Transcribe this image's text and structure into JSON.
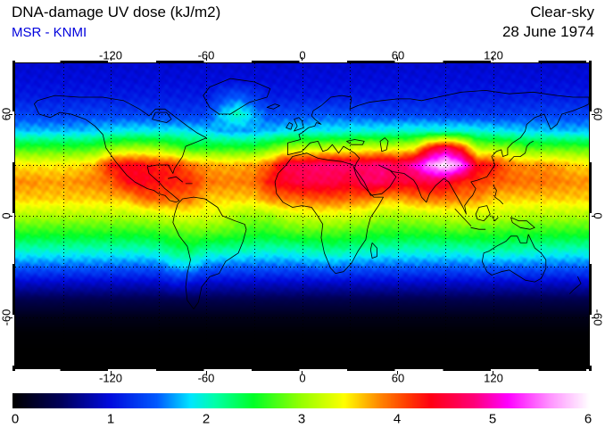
{
  "header": {
    "title": "DNA-damage UV dose (kJ/m2)",
    "source": "MSR - KNMI",
    "source_color": "#0000dd",
    "condition": "Clear-sky",
    "date": "28 June 1974"
  },
  "chart_data": {
    "type": "heatmap",
    "projection": "equirectangular",
    "unit": "kJ/m2",
    "lon_range": [
      -180,
      180
    ],
    "lat_range": [
      -90,
      90
    ],
    "grid_step_deg": 30,
    "lon_ticks": [
      -120,
      -60,
      0,
      60,
      120
    ],
    "lat_ticks": [
      60,
      0,
      -60
    ],
    "lon_tick_labels": [
      "-120",
      "-60",
      "0",
      "60",
      "120"
    ],
    "lat_tick_labels": [
      "60",
      "0",
      "-60"
    ],
    "colorbar": {
      "min": 0,
      "max": 6,
      "ticks": [
        0,
        1,
        2,
        3,
        4,
        5,
        6
      ],
      "tick_labels": [
        "0",
        "1",
        "2",
        "3",
        "4",
        "5",
        "6"
      ],
      "stops": [
        {
          "v": 0.0,
          "c": "#000000"
        },
        {
          "v": 0.5,
          "c": "#00005a"
        },
        {
          "v": 1.0,
          "c": "#000adc"
        },
        {
          "v": 1.5,
          "c": "#005aff"
        },
        {
          "v": 1.85,
          "c": "#00e6ff"
        },
        {
          "v": 2.1,
          "c": "#00ffaa"
        },
        {
          "v": 2.5,
          "c": "#00ff28"
        },
        {
          "v": 3.0,
          "c": "#96ff00"
        },
        {
          "v": 3.45,
          "c": "#ffff00"
        },
        {
          "v": 3.8,
          "c": "#ff8c00"
        },
        {
          "v": 4.1,
          "c": "#ff3c00"
        },
        {
          "v": 4.35,
          "c": "#ff0014"
        },
        {
          "v": 4.8,
          "c": "#ff0078"
        },
        {
          "v": 5.15,
          "c": "#ff00ff"
        },
        {
          "v": 5.6,
          "c": "#ff96ff"
        },
        {
          "v": 6.0,
          "c": "#ffffff"
        }
      ]
    },
    "grid": {
      "lats": [
        90,
        80,
        70,
        60,
        50,
        40,
        30,
        20,
        10,
        0,
        -10,
        -20,
        -30,
        -40,
        -50,
        -60,
        -70,
        -80,
        -90
      ],
      "lons": [
        -180,
        -170,
        -160,
        -150,
        -140,
        -130,
        -120,
        -110,
        -100,
        -90,
        -80,
        -70,
        -60,
        -50,
        -40,
        -30,
        -20,
        -10,
        0,
        10,
        20,
        30,
        40,
        50,
        60,
        70,
        80,
        90,
        100,
        110,
        120,
        130,
        140,
        150,
        160,
        170,
        180
      ],
      "values": [
        [
          0.95,
          0.95,
          0.95,
          0.95,
          0.95,
          0.95,
          0.95,
          0.95,
          0.95,
          0.95,
          0.95,
          0.95,
          0.95,
          0.95,
          0.95,
          0.95,
          0.95,
          0.95,
          0.95,
          0.95,
          0.95,
          0.95,
          0.95,
          0.95,
          0.95,
          0.95,
          0.95,
          0.95,
          0.95,
          0.95,
          0.95,
          0.95,
          0.95,
          0.95,
          0.95,
          0.95,
          0.95
        ],
        [
          1.0,
          1.0,
          1.0,
          1.0,
          1.0,
          1.0,
          1.0,
          1.0,
          1.0,
          1.0,
          1.0,
          1.0,
          1.0,
          1.0,
          1.0,
          1.0,
          1.0,
          1.0,
          1.0,
          1.0,
          1.0,
          1.0,
          1.0,
          1.0,
          1.0,
          1.0,
          1.0,
          1.0,
          1.0,
          1.0,
          1.0,
          1.0,
          1.0,
          1.0,
          1.0,
          1.0,
          1.0
        ],
        [
          1.1,
          1.1,
          1.1,
          1.1,
          1.1,
          1.1,
          1.1,
          1.1,
          1.1,
          1.1,
          1.1,
          1.1,
          1.1,
          1.35,
          1.5,
          1.3,
          1.1,
          1.1,
          1.1,
          1.1,
          1.1,
          1.1,
          1.1,
          1.1,
          1.1,
          1.1,
          1.1,
          1.1,
          1.1,
          1.1,
          1.1,
          1.1,
          1.1,
          1.1,
          1.1,
          1.1,
          1.1
        ],
        [
          1.35,
          1.35,
          1.3,
          1.3,
          1.35,
          1.35,
          1.35,
          1.35,
          1.35,
          1.3,
          1.3,
          1.3,
          1.35,
          1.8,
          2.1,
          1.7,
          1.4,
          1.4,
          1.4,
          1.45,
          1.45,
          1.4,
          1.4,
          1.35,
          1.35,
          1.35,
          1.35,
          1.3,
          1.3,
          1.3,
          1.3,
          1.3,
          1.35,
          1.35,
          1.35,
          1.35,
          1.35
        ],
        [
          1.75,
          1.75,
          1.75,
          1.75,
          1.75,
          1.8,
          1.85,
          1.9,
          1.9,
          1.9,
          1.9,
          1.85,
          1.8,
          1.7,
          1.65,
          1.7,
          1.75,
          1.85,
          1.9,
          1.9,
          1.9,
          1.95,
          1.95,
          1.95,
          2.0,
          2.0,
          2.0,
          2.0,
          2.0,
          1.95,
          1.9,
          1.85,
          1.8,
          1.8,
          1.75,
          1.75,
          1.75
        ],
        [
          2.65,
          2.65,
          2.65,
          2.65,
          2.65,
          2.7,
          2.95,
          3.05,
          3.05,
          3.0,
          2.8,
          2.6,
          2.6,
          2.6,
          2.6,
          2.6,
          2.8,
          3.1,
          3.15,
          3.15,
          3.2,
          3.2,
          3.3,
          3.3,
          3.3,
          3.4,
          4.3,
          4.7,
          4.2,
          3.1,
          3.05,
          3.0,
          2.75,
          2.75,
          2.75,
          2.75,
          2.7
        ],
        [
          3.55,
          3.5,
          3.5,
          3.5,
          3.55,
          3.7,
          4.3,
          4.4,
          4.35,
          4.25,
          4.2,
          3.9,
          3.75,
          3.7,
          3.7,
          3.75,
          4.0,
          4.6,
          4.65,
          4.75,
          4.75,
          4.75,
          4.7,
          4.85,
          4.65,
          5.0,
          5.6,
          6.0,
          5.5,
          4.35,
          4.3,
          3.9,
          3.8,
          3.8,
          3.75,
          3.6,
          3.55
        ],
        [
          3.8,
          3.8,
          3.75,
          3.75,
          3.8,
          3.85,
          3.95,
          4.35,
          4.4,
          4.3,
          4.25,
          4.2,
          3.9,
          3.85,
          3.85,
          3.9,
          4.3,
          4.45,
          4.6,
          4.6,
          4.6,
          4.45,
          4.7,
          4.7,
          4.5,
          4.5,
          4.6,
          4.5,
          4.2,
          4.15,
          4.0,
          3.95,
          3.9,
          3.9,
          3.85,
          3.8,
          3.8
        ],
        [
          3.6,
          3.6,
          3.6,
          3.6,
          3.6,
          3.6,
          3.65,
          3.65,
          3.95,
          4.0,
          3.95,
          3.9,
          3.6,
          3.6,
          3.6,
          3.6,
          3.85,
          3.9,
          3.95,
          4.0,
          4.0,
          3.95,
          3.9,
          3.7,
          3.7,
          3.85,
          3.9,
          3.9,
          3.85,
          3.8,
          3.6,
          3.6,
          3.6,
          3.6,
          3.6,
          3.6,
          3.6
        ],
        [
          3.1,
          3.1,
          3.1,
          3.1,
          3.1,
          3.1,
          3.1,
          3.1,
          3.15,
          3.2,
          3.3,
          3.35,
          3.3,
          3.25,
          3.0,
          3.0,
          3.0,
          3.2,
          3.25,
          3.3,
          3.3,
          3.25,
          3.2,
          3.05,
          3.05,
          3.1,
          3.15,
          3.2,
          3.25,
          3.2,
          3.2,
          3.15,
          3.1,
          3.1,
          3.1,
          3.1,
          3.1
        ],
        [
          2.6,
          2.6,
          2.6,
          2.6,
          2.6,
          2.6,
          2.6,
          2.6,
          2.6,
          2.65,
          2.75,
          2.8,
          2.8,
          2.75,
          2.7,
          2.6,
          2.6,
          2.7,
          2.75,
          2.75,
          2.75,
          2.7,
          2.65,
          2.6,
          2.6,
          2.6,
          2.6,
          2.65,
          2.7,
          2.65,
          2.65,
          2.6,
          2.6,
          2.6,
          2.6,
          2.6,
          2.6
        ],
        [
          2.05,
          2.05,
          2.05,
          2.05,
          2.05,
          2.05,
          2.05,
          2.05,
          2.05,
          2.1,
          2.3,
          2.35,
          2.15,
          2.15,
          2.1,
          2.05,
          2.05,
          2.05,
          2.1,
          2.15,
          2.2,
          2.15,
          2.1,
          2.05,
          2.05,
          2.05,
          2.05,
          2.05,
          2.05,
          2.1,
          2.15,
          2.15,
          2.1,
          2.05,
          2.05,
          2.05,
          2.05
        ],
        [
          1.5,
          1.5,
          1.5,
          1.5,
          1.5,
          1.5,
          1.5,
          1.5,
          1.5,
          1.52,
          1.75,
          1.8,
          1.55,
          1.5,
          1.5,
          1.5,
          1.5,
          1.5,
          1.52,
          1.55,
          1.58,
          1.52,
          1.5,
          1.5,
          1.5,
          1.5,
          1.5,
          1.5,
          1.5,
          1.52,
          1.52,
          1.52,
          1.52,
          1.52,
          1.5,
          1.5,
          1.5
        ],
        [
          0.9,
          0.9,
          0.9,
          0.9,
          0.9,
          0.9,
          0.9,
          0.9,
          0.9,
          0.9,
          1.05,
          1.0,
          0.9,
          0.9,
          0.9,
          0.9,
          0.9,
          0.9,
          0.9,
          0.9,
          0.9,
          0.9,
          0.9,
          0.9,
          0.9,
          0.9,
          0.9,
          0.9,
          0.9,
          0.9,
          0.9,
          0.9,
          0.9,
          0.9,
          0.9,
          0.9,
          0.9
        ],
        [
          0.42,
          0.42,
          0.42,
          0.42,
          0.42,
          0.42,
          0.42,
          0.42,
          0.42,
          0.42,
          0.42,
          0.42,
          0.42,
          0.42,
          0.42,
          0.42,
          0.42,
          0.42,
          0.42,
          0.42,
          0.42,
          0.42,
          0.42,
          0.42,
          0.42,
          0.42,
          0.42,
          0.42,
          0.42,
          0.42,
          0.42,
          0.42,
          0.42,
          0.42,
          0.42,
          0.42,
          0.42
        ],
        [
          0.13,
          0.13,
          0.13,
          0.13,
          0.13,
          0.13,
          0.13,
          0.13,
          0.13,
          0.13,
          0.13,
          0.13,
          0.13,
          0.13,
          0.13,
          0.13,
          0.13,
          0.13,
          0.13,
          0.13,
          0.13,
          0.13,
          0.13,
          0.13,
          0.13,
          0.13,
          0.13,
          0.13,
          0.13,
          0.13,
          0.13,
          0.13,
          0.13,
          0.13,
          0.13,
          0.13,
          0.13
        ],
        [
          0.02,
          0.02,
          0.02,
          0.02,
          0.02,
          0.02,
          0.02,
          0.02,
          0.02,
          0.02,
          0.02,
          0.02,
          0.02,
          0.02,
          0.02,
          0.02,
          0.02,
          0.02,
          0.02,
          0.02,
          0.02,
          0.02,
          0.02,
          0.02,
          0.02,
          0.02,
          0.02,
          0.02,
          0.02,
          0.02,
          0.02,
          0.02,
          0.02,
          0.02,
          0.02,
          0.02,
          0.02
        ],
        [
          0,
          0,
          0,
          0,
          0,
          0,
          0,
          0,
          0,
          0,
          0,
          0,
          0,
          0,
          0,
          0,
          0,
          0,
          0,
          0,
          0,
          0,
          0,
          0,
          0,
          0,
          0,
          0,
          0,
          0,
          0,
          0,
          0,
          0,
          0,
          0,
          0
        ],
        [
          0,
          0,
          0,
          0,
          0,
          0,
          0,
          0,
          0,
          0,
          0,
          0,
          0,
          0,
          0,
          0,
          0,
          0,
          0,
          0,
          0,
          0,
          0,
          0,
          0,
          0,
          0,
          0,
          0,
          0,
          0,
          0,
          0,
          0,
          0,
          0,
          0
        ]
      ]
    }
  }
}
